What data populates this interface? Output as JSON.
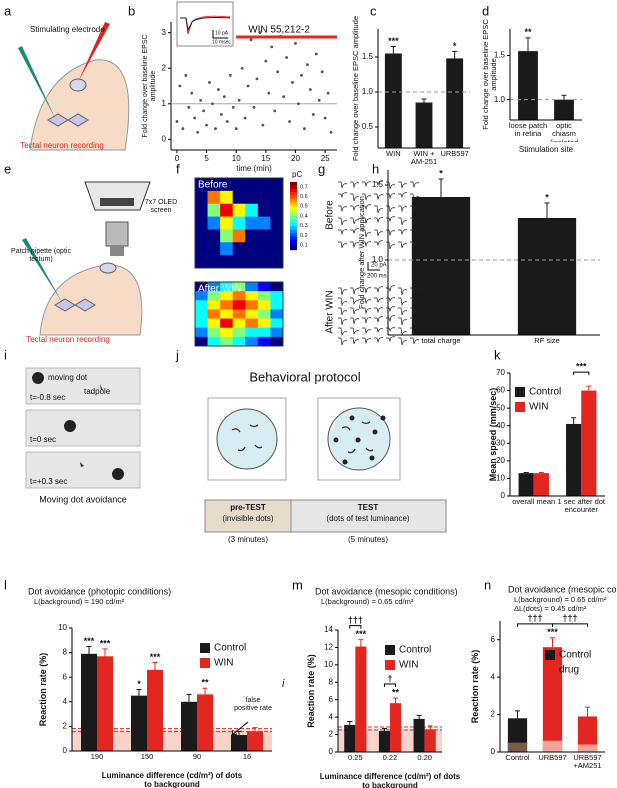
{
  "chart_data": [
    {
      "type": "scatter",
      "panel": "b",
      "ylabel": "Fold change over baseline EPSC amplitude",
      "xlabel": "time (min)",
      "x": [
        0,
        0.5,
        1,
        1.5,
        2,
        2.5,
        3,
        3.5,
        4,
        4.5,
        5,
        5.5,
        6,
        6.5,
        7,
        7.5,
        8,
        8.5,
        9,
        9.5,
        10,
        10.5,
        11,
        11.5,
        12,
        12.5,
        13,
        13.5,
        14,
        14.5,
        15,
        15.5,
        16,
        16.5,
        17,
        17.5,
        18,
        18.5,
        19,
        19.5,
        20,
        20.5,
        21,
        21.5,
        22,
        22.5,
        23,
        23.5,
        24,
        24.5,
        25,
        25.5,
        26
      ],
      "values": [
        0.5,
        1.5,
        0.3,
        1.8,
        0.9,
        1.3,
        0.6,
        0.2,
        1.1,
        0.8,
        0.4,
        1.6,
        1.0,
        0.3,
        1.4,
        0.7,
        1.2,
        0.5,
        1.8,
        0.9,
        0.3,
        1.1,
        2.0,
        0.6,
        1.5,
        2.8,
        0.9,
        1.7,
        3.0,
        0.4,
        2.2,
        1.3,
        2.6,
        0.8,
        1.9,
        2.9,
        1.2,
        2.3,
        0.5,
        1.6,
        2.7,
        1.0,
        1.8,
        0.3,
        2.1,
        1.4,
        0.7,
        2.4,
        1.1,
        1.9,
        0.6,
        1.3,
        0.2
      ],
      "color": "#555",
      "xlim": [
        -1,
        27
      ],
      "xticks": [
        0,
        5,
        10,
        15,
        20,
        25
      ],
      "ylim": [
        -0.3,
        3.3
      ],
      "yticks": [
        0,
        1,
        2,
        3
      ],
      "reference_line": 1,
      "treatment_label": "WIN 55,212-2",
      "treatment_span": [
        10,
        27
      ],
      "treatment_color": "#e3261f",
      "inset_scale_y": "10 pA",
      "inset_scale_x": "10 msec"
    },
    {
      "type": "bar",
      "panel": "c",
      "ylabel": "Fold change over baseline EPSC amplitude",
      "categories": [
        "WIN",
        "WIN + AM-251",
        "URB597"
      ],
      "values": [
        1.55,
        0.85,
        1.48
      ],
      "errors": [
        0.1,
        0.05,
        0.1
      ],
      "color": "#1a1a1a",
      "ylim": [
        0.2,
        1.9
      ],
      "yticks": [
        0.5,
        {
          "value": 1,
          "label": "1.0"
        },
        1.5
      ],
      "reference_line": 1,
      "significance": [
        {
          "index": 0,
          "label": "***"
        },
        {
          "index": 2,
          "label": "*"
        }
      ]
    },
    {
      "type": "bar",
      "panel": "d",
      "ylabel": "Fold change over baseline EPSC amplitude",
      "xlabel": "Stimulation site",
      "categories": [
        "loose patch in retina",
        "optic chiasm (isolated brain)"
      ],
      "values": [
        1.55,
        1.0
      ],
      "errors": [
        0.15,
        0.05
      ],
      "color": "#1a1a1a",
      "ylim": [
        0.77,
        1.8
      ],
      "yticks": [
        {
          "value": 1,
          "label": "1.0"
        },
        1.5
      ],
      "reference_line": 1,
      "significance": [
        {
          "index": 0,
          "label": "**"
        }
      ]
    },
    {
      "type": "bar",
      "panel": "h",
      "ylabel": "Fold change after WIN application",
      "categories": [
        "total charge",
        "RF size"
      ],
      "values": [
        1.42,
        1.28
      ],
      "errors": [
        0.12,
        0.1
      ],
      "color": "#1a1a1a",
      "ylim": [
        0.5,
        1.6
      ],
      "yticks": [
        {
          "value": 1,
          "label": "1.0"
        },
        1.5
      ],
      "reference_line": 1,
      "significance": [
        {
          "index": 0,
          "label": "*"
        },
        {
          "index": 1,
          "label": "*"
        }
      ]
    },
    {
      "type": "bar",
      "panel": "k",
      "ylabel": "Mean speed (mm/sec)",
      "categories": [
        "overall mean",
        "1 sec after dot encounter"
      ],
      "series": [
        {
          "name": "Control",
          "color": "#1a1a1a",
          "values": [
            13,
            41
          ],
          "errors": [
            0.4,
            3.5
          ]
        },
        {
          "name": "WIN",
          "color": "#e3261f",
          "values": [
            13,
            60
          ],
          "errors": [
            0.4,
            2.5
          ]
        }
      ],
      "ylim": [
        0,
        70
      ],
      "yticks": [
        0,
        10,
        20,
        30,
        40,
        50,
        60,
        70
      ],
      "brackets": [
        {
          "from": 1,
          "to": 1,
          "label": "***"
        }
      ]
    },
    {
      "type": "bar",
      "panel": "l",
      "title": "Dot avoidance (photopic conditions)",
      "subtitle": "L(background) = 190 cd/m²",
      "ylabel": "Reaction rate (%)",
      "xlabel": "Luminance difference (cd/m²) of dots to background",
      "categories": [
        "190",
        "150",
        "90",
        "16"
      ],
      "series": [
        {
          "name": "Control",
          "color": "#1a1a1a",
          "values": [
            7.9,
            4.5,
            4.0,
            1.3
          ],
          "errors": [
            0.6,
            0.5,
            0.6,
            0.3
          ]
        },
        {
          "name": "WIN",
          "color": "#e3261f",
          "values": [
            7.7,
            6.6,
            4.6,
            1.6
          ],
          "errors": [
            0.6,
            0.6,
            0.5,
            0.3
          ]
        }
      ],
      "ylim": [
        0,
        10
      ],
      "yticks": [
        0,
        2,
        4,
        6,
        8,
        10
      ],
      "false_positive_rate": 1.7,
      "false_positive_label": "false positive rate",
      "significance": [
        {
          "series": 0,
          "index": 0,
          "label": "***"
        },
        {
          "series": 1,
          "index": 0,
          "label": "***"
        },
        {
          "series": 0,
          "index": 1,
          "label": "*"
        },
        {
          "series": 1,
          "index": 1,
          "label": "***"
        },
        {
          "series": 1,
          "index": 2,
          "label": "**"
        }
      ],
      "stray_label": "i"
    },
    {
      "type": "bar",
      "panel": "m",
      "title": "Dot avoidance (mesopic conditions)",
      "subtitle": "L(background) = 0.65 cd/m²",
      "ylabel": "Reaction rate (%)",
      "xlabel": "Luminance difference (cd/m²) of dots to background",
      "categories": [
        "0.25",
        "0.22",
        "0.20"
      ],
      "series": [
        {
          "name": "Control",
          "color": "#1a1a1a",
          "values": [
            3.1,
            2.4,
            3.8
          ],
          "errors": [
            0.4,
            0.3,
            0.4
          ]
        },
        {
          "name": "WIN",
          "color": "#e3261f",
          "values": [
            12.1,
            5.6,
            2.6
          ],
          "errors": [
            0.8,
            0.6,
            0.4
          ]
        }
      ],
      "ylim": [
        0,
        14
      ],
      "yticks": [
        0,
        2,
        4,
        6,
        8,
        10,
        12,
        14
      ],
      "false_positive_rate": 2.7,
      "significance": [
        {
          "series": 1,
          "index": 0,
          "label": "***"
        },
        {
          "series": 1,
          "index": 1,
          "label": "**"
        }
      ],
      "brackets": [
        {
          "from": 0,
          "to": 0,
          "label": "†††"
        },
        {
          "from": 1,
          "to": 1,
          "label": "†"
        }
      ]
    },
    {
      "type": "bar",
      "panel": "n",
      "title": "Dot avoidance (mesopic conditions)",
      "subtitle": "L(background) = 0.65 cd/m²",
      "subtitle2": "ΔL(dots) = 0.45 cd/m²",
      "ylabel": "Reaction rate (%)",
      "categories": [
        "Control",
        "URB597",
        "URB597 +AM251"
      ],
      "values": [
        1.8,
        5.6,
        1.9
      ],
      "errors": [
        0.4,
        0.5,
        0.5
      ],
      "bar_colors": [
        "#1a1a1a",
        "#e3261f",
        "#e3261f"
      ],
      "false_positive": [
        0.5,
        0.6,
        0.4
      ],
      "false_positive_colors": [
        "#7b5a48",
        "#f4a39a",
        "#f4a39a"
      ],
      "legend": [
        {
          "name": "Control",
          "color": "#1a1a1a"
        },
        {
          "name": "drug",
          "color": "#e3261f"
        }
      ],
      "ylim": [
        0,
        7
      ],
      "yticks": [
        0,
        2,
        4,
        6
      ],
      "significance": [
        {
          "index": 1,
          "label": "***"
        }
      ],
      "brackets": [
        {
          "from": 0,
          "to": 1,
          "label": "†††"
        },
        {
          "from": 1,
          "to": 2,
          "label": "†††"
        }
      ]
    }
  ],
  "illustrations": {
    "a": {
      "label": "a",
      "electrode": "Stimulating electrode",
      "recording": "Tectal neuron recording"
    },
    "e": {
      "label": "e",
      "screen": "7x7 OLED screen",
      "pipette": "Patch pipette (optic tectum)",
      "recording": "Tectal neuron recording"
    },
    "f": {
      "label": "f",
      "before": "Before",
      "after": "After WIN",
      "unit": "pC",
      "colorbar_lim": [
        0.05,
        0.75
      ],
      "colorbar_ticks": [
        0.7,
        0.6,
        0.5,
        0.4,
        0.3,
        0.2,
        0.1
      ],
      "before_grid": [
        [
          0,
          0,
          0,
          0,
          0,
          0,
          0
        ],
        [
          0,
          0.6,
          0.5,
          0,
          0,
          0,
          0
        ],
        [
          0,
          0.4,
          0.7,
          0.5,
          0.3,
          0,
          0
        ],
        [
          0,
          0.2,
          0.5,
          0.3,
          0.2,
          0.2,
          0
        ],
        [
          0,
          0,
          0.4,
          0.6,
          0,
          0,
          0
        ],
        [
          0,
          0,
          0.2,
          0,
          0,
          0,
          0
        ],
        [
          0,
          0,
          0,
          0,
          0,
          0,
          0
        ]
      ],
      "after_grid": [
        [
          0,
          0.2,
          0.3,
          0.4,
          0.2,
          0.1,
          0
        ],
        [
          0.2,
          0.4,
          0.5,
          0.6,
          0.5,
          0.4,
          0.3
        ],
        [
          0.3,
          0.5,
          0.6,
          0.7,
          0.6,
          0.5,
          0.3
        ],
        [
          0.3,
          0.6,
          0.5,
          0.6,
          0.5,
          0.4,
          0.2
        ],
        [
          0.3,
          0.5,
          0.7,
          0.5,
          0.6,
          0.5,
          0.3
        ],
        [
          0.2,
          0.4,
          0.5,
          0.4,
          0.3,
          0.3,
          0.2
        ],
        [
          0,
          0.3,
          0.4,
          0.3,
          0.2,
          0.1,
          0
        ]
      ]
    },
    "g": {
      "label": "g",
      "before": "Before",
      "after": "After WIN",
      "scale_y": "20 pA",
      "scale_x": "200 ms"
    },
    "i": {
      "label": "i",
      "dot": "moving dot",
      "tadpole": "tadpole",
      "t1": "t=-0.8 sec",
      "t2": "t=0 sec",
      "t3": "t=+0.3 sec",
      "caption": "Moving dot avoidance"
    },
    "j": {
      "label": "j",
      "title": "Behavioral protocol",
      "pretest": "pre-TEST",
      "pretest_note": "(invisible dots)",
      "pretest_time": "(3 minutes)",
      "test": "TEST",
      "test_note": "(dots of test luminance)",
      "test_time": "(5 minutes)"
    }
  }
}
